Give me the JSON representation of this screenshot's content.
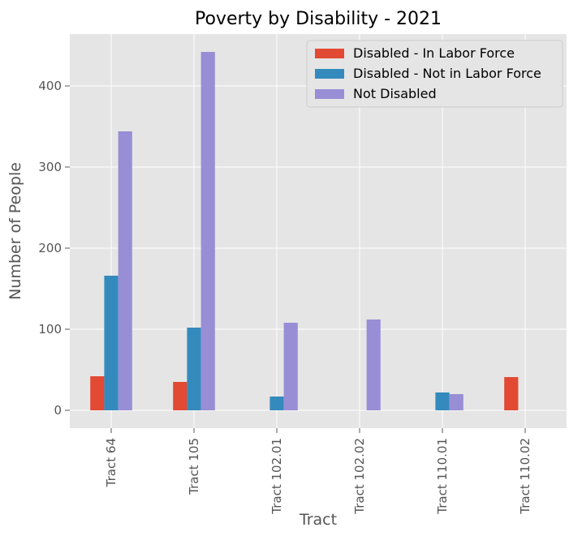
{
  "chart_data": {
    "type": "bar",
    "title": "Poverty by Disability - 2021",
    "xlabel": "Tract",
    "ylabel": "Number of People",
    "categories": [
      "Tract 64",
      "Tract 105",
      "Tract 102.01",
      "Tract 102.02",
      "Tract 110.01",
      "Tract 110.02"
    ],
    "series": [
      {
        "name": "Disabled - In Labor Force",
        "color": "#E24A33",
        "values": [
          42,
          35,
          0,
          0,
          0,
          41
        ]
      },
      {
        "name": "Disabled - Not in Labor Force",
        "color": "#348ABD",
        "values": [
          166,
          102,
          17,
          0,
          22,
          0
        ]
      },
      {
        "name": "Not Disabled",
        "color": "#988ED5",
        "values": [
          344,
          442,
          108,
          112,
          20,
          0
        ]
      }
    ],
    "ylim": [
      -22,
      464
    ],
    "yticks": [
      0,
      100,
      200,
      300,
      400
    ],
    "grid": true,
    "legend_position": "top-right",
    "colors": {
      "plot_background": "#E5E5E5",
      "grid": "#FFFFFF",
      "text": "#555555"
    }
  }
}
